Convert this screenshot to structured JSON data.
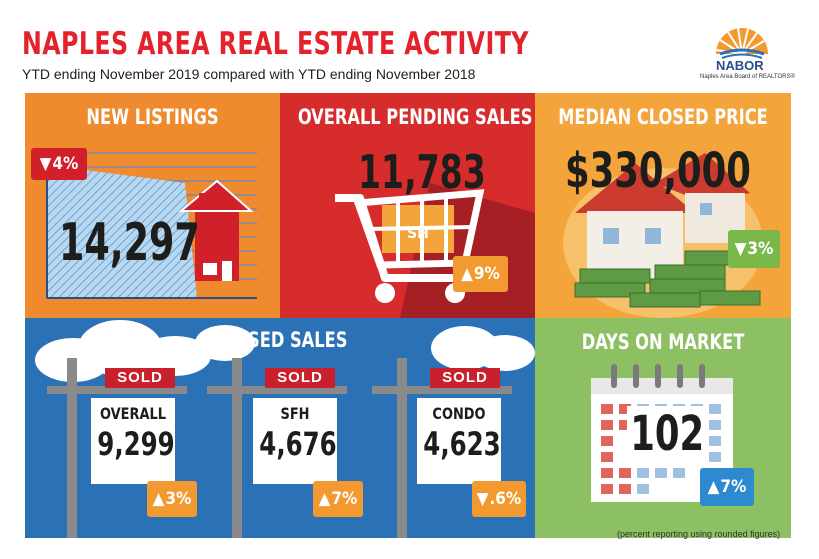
{
  "header": {
    "title": "NAPLES AREA REAL ESTATE ACTIVITY",
    "subtitle": "YTD ending November 2019 compared with YTD ending November 2018"
  },
  "logo": {
    "name": "NABOR",
    "tagline": "Naples Area Board of REALTORS®"
  },
  "panels": {
    "new_listings": {
      "title": "NEW LISTINGS",
      "value": "14,297",
      "change": "4%",
      "direction": "down",
      "bg": "#ef8a2e"
    },
    "pending_sales": {
      "title": "OVERALL PENDING SALES",
      "value": "11,783",
      "change": "9%",
      "direction": "up",
      "bg": "#d62c2c"
    },
    "median_price": {
      "title": "MEDIAN CLOSED PRICE",
      "value": "$330,000",
      "change": "3%",
      "direction": "down",
      "bg": "#f3a43a"
    },
    "closed_sales": {
      "title": "CLOSED SALES",
      "bg": "#2b71b5",
      "sold_label": "SOLD",
      "signs": [
        {
          "label": "OVERALL",
          "value": "9,299",
          "change": "3%",
          "direction": "up"
        },
        {
          "label": "SFH",
          "value": "4,676",
          "change": "7%",
          "direction": "up"
        },
        {
          "label": "CONDO",
          "value": "4,623",
          "change": ".6%",
          "direction": "down"
        }
      ]
    },
    "days_on_market": {
      "title": "DAYS ON MARKET",
      "value": "102",
      "change": "7%",
      "direction": "up",
      "bg": "#8cc063"
    }
  },
  "footnote": "(percent reporting using rounded figures)",
  "colors": {
    "red": "#e3222b",
    "orange_badge": "#f29a30",
    "red_badge": "#d2202a",
    "green_badge": "#7bb84a",
    "blue_badge": "#2d8ad1"
  },
  "icons": {
    "up": "▲",
    "down": "▼"
  }
}
